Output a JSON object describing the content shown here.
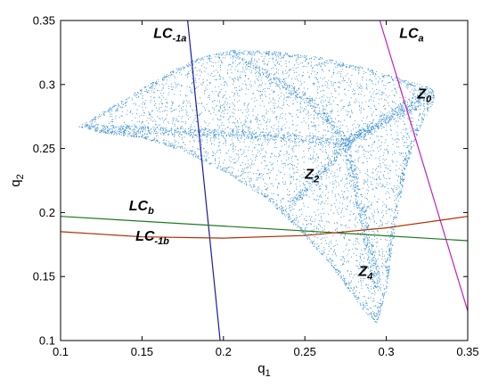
{
  "chart_data": {
    "type": "scatter",
    "xlabel": "q",
    "xlabel_sub": "1",
    "ylabel": "q",
    "ylabel_sub": "2",
    "xlim": [
      0.1,
      0.35
    ],
    "ylim": [
      0.1,
      0.35
    ],
    "x_ticks": [
      0.1,
      0.15,
      0.2,
      0.25,
      0.3,
      0.35
    ],
    "y_ticks": [
      0.1,
      0.15,
      0.2,
      0.25,
      0.3,
      0.35
    ],
    "x_tick_labels": [
      "0.1",
      "0.15",
      "0.2",
      "0.25",
      "0.3",
      "0.35"
    ],
    "y_tick_labels": [
      "0.1",
      "0.15",
      "0.2",
      "0.25",
      "0.3",
      "0.35"
    ],
    "grid": false,
    "attractor": {
      "color": "#3a8fd0",
      "outline": [
        [
          0.111,
          0.267
        ],
        [
          0.125,
          0.278
        ],
        [
          0.15,
          0.297
        ],
        [
          0.17,
          0.312
        ],
        [
          0.185,
          0.321
        ],
        [
          0.205,
          0.327
        ],
        [
          0.23,
          0.326
        ],
        [
          0.26,
          0.321
        ],
        [
          0.29,
          0.312
        ],
        [
          0.315,
          0.302
        ],
        [
          0.328,
          0.297
        ],
        [
          0.33,
          0.289
        ],
        [
          0.32,
          0.265
        ],
        [
          0.312,
          0.235
        ],
        [
          0.305,
          0.185
        ],
        [
          0.3,
          0.14
        ],
        [
          0.294,
          0.113
        ],
        [
          0.285,
          0.125
        ],
        [
          0.265,
          0.16
        ],
        [
          0.245,
          0.188
        ],
        [
          0.225,
          0.212
        ],
        [
          0.2,
          0.232
        ],
        [
          0.175,
          0.248
        ],
        [
          0.15,
          0.258
        ],
        [
          0.125,
          0.262
        ]
      ],
      "dense_spines": [
        [
          [
            0.205,
            0.325
          ],
          [
            0.255,
            0.285
          ],
          [
            0.275,
            0.255
          ],
          [
            0.295,
            0.14
          ]
        ],
        [
          [
            0.112,
            0.266
          ],
          [
            0.2,
            0.262
          ],
          [
            0.275,
            0.255
          ],
          [
            0.328,
            0.29
          ]
        ],
        [
          [
            0.275,
            0.255
          ],
          [
            0.3,
            0.275
          ],
          [
            0.325,
            0.295
          ]
        ],
        [
          [
            0.275,
            0.255
          ],
          [
            0.26,
            0.23
          ],
          [
            0.24,
            0.205
          ]
        ]
      ]
    },
    "curves": [
      {
        "name": "LC-1a",
        "color": "#1a1aa8",
        "points": [
          [
            0.178,
            0.35
          ],
          [
            0.198,
            0.1
          ]
        ]
      },
      {
        "name": "LCa",
        "color": "#c020c0",
        "points": [
          [
            0.296,
            0.35
          ],
          [
            0.35,
            0.123
          ]
        ]
      },
      {
        "name": "LCb",
        "color": "#1e7a1e",
        "points": [
          [
            0.1,
            0.197
          ],
          [
            0.35,
            0.178
          ]
        ]
      },
      {
        "name": "LC-1b",
        "color": "#b03000",
        "points": [
          [
            0.1,
            0.185
          ],
          [
            0.15,
            0.181
          ],
          [
            0.2,
            0.18
          ],
          [
            0.25,
            0.182
          ],
          [
            0.3,
            0.188
          ],
          [
            0.35,
            0.197
          ]
        ]
      }
    ],
    "annotations": [
      {
        "text": "LC",
        "sub": "-1a",
        "x": 0.157,
        "y": 0.3365
      },
      {
        "text": "LC",
        "sub": "a",
        "x": 0.308,
        "y": 0.3365
      },
      {
        "text": "Z",
        "sub": "0",
        "x": 0.319,
        "y": 0.289
      },
      {
        "text": "Z",
        "sub": "2",
        "x": 0.25,
        "y": 0.2265
      },
      {
        "text": "LC",
        "sub": "b",
        "x": 0.142,
        "y": 0.2015
      },
      {
        "text": "LC",
        "sub": "-1b",
        "x": 0.146,
        "y": 0.178
      },
      {
        "text": "Z",
        "sub": "4",
        "x": 0.283,
        "y": 0.1505
      }
    ]
  }
}
